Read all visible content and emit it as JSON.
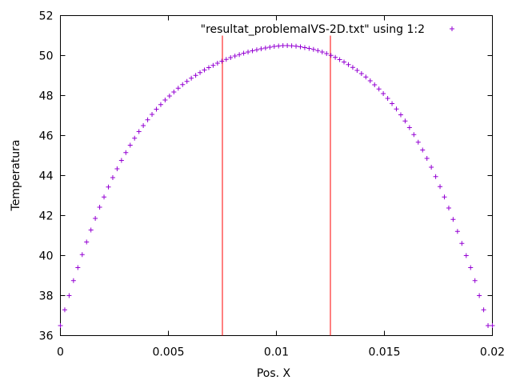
{
  "chart_data": {
    "type": "scatter",
    "title": "",
    "xlabel": "Pos. X",
    "ylabel": "Temperatura",
    "xlim": [
      0,
      0.02
    ],
    "ylim": [
      36,
      52
    ],
    "xticks": [
      "0",
      "0.005",
      "0.01",
      "0.015",
      "0.02"
    ],
    "yticks": [
      "36",
      "38",
      "40",
      "42",
      "44",
      "46",
      "48",
      "50",
      "52"
    ],
    "legend_position": "top-right",
    "grid": false,
    "series": [
      {
        "name": "\"resultat_problemaIVS-2D.txt\" using 1:2",
        "color": "#9400d3",
        "marker": "plus",
        "x": [
          0,
          0.000202,
          0.000404,
          0.000606,
          0.000808,
          0.00101,
          0.001212,
          0.001414,
          0.001616,
          0.001818,
          0.00202,
          0.002222,
          0.002424,
          0.002626,
          0.002828,
          0.00303,
          0.003232,
          0.003434,
          0.003636,
          0.003838,
          0.00404,
          0.004242,
          0.004444,
          0.004646,
          0.004848,
          0.005051,
          0.005253,
          0.005455,
          0.005657,
          0.005859,
          0.006061,
          0.006263,
          0.006465,
          0.006667,
          0.006869,
          0.007071,
          0.007273,
          0.007475,
          0.007677,
          0.007879,
          0.008081,
          0.008283,
          0.008485,
          0.008687,
          0.008889,
          0.009091,
          0.009293,
          0.009495,
          0.009697,
          0.009899,
          0.010101,
          0.010303,
          0.010505,
          0.010707,
          0.010909,
          0.011111,
          0.011313,
          0.011515,
          0.011717,
          0.011919,
          0.012121,
          0.012323,
          0.012525,
          0.012727,
          0.012929,
          0.013131,
          0.013333,
          0.013535,
          0.013737,
          0.013939,
          0.014141,
          0.014343,
          0.014545,
          0.014747,
          0.014949,
          0.015152,
          0.015354,
          0.015556,
          0.015758,
          0.01596,
          0.016162,
          0.016364,
          0.016566,
          0.016768,
          0.01697,
          0.017172,
          0.017374,
          0.017576,
          0.017778,
          0.01798,
          0.018182,
          0.018384,
          0.018586,
          0.018788,
          0.01899,
          0.019192,
          0.019394,
          0.019596,
          0.019798,
          0.02
        ],
        "y": [
          36.5,
          37.29,
          38.0,
          38.75,
          39.4,
          40.05,
          40.68,
          41.28,
          41.86,
          42.42,
          42.93,
          43.43,
          43.9,
          44.34,
          44.76,
          45.15,
          45.52,
          45.87,
          46.2,
          46.5,
          46.79,
          47.06,
          47.32,
          47.55,
          47.78,
          47.98,
          48.18,
          48.37,
          48.55,
          48.71,
          48.87,
          49.01,
          49.15,
          49.28,
          49.4,
          49.51,
          49.62,
          49.72,
          49.81,
          49.9,
          49.98,
          50.05,
          50.12,
          50.18,
          50.24,
          50.29,
          50.34,
          50.38,
          50.42,
          50.46,
          50.48,
          50.5,
          50.5,
          50.49,
          50.47,
          50.44,
          50.4,
          50.36,
          50.31,
          50.25,
          50.18,
          50.1,
          50.01,
          49.91,
          49.8,
          49.68,
          49.55,
          49.41,
          49.26,
          49.1,
          48.93,
          48.74,
          48.54,
          48.33,
          48.1,
          47.86,
          47.6,
          47.33,
          47.04,
          46.73,
          46.4,
          46.05,
          45.67,
          45.28,
          44.86,
          44.42,
          43.95,
          43.45,
          42.93,
          42.38,
          41.81,
          41.21,
          40.61,
          40.0,
          39.4,
          38.75,
          38.0,
          37.29,
          36.5,
          36.5
        ]
      }
    ],
    "vertical_lines": [
      {
        "x": 0.0075,
        "y_from": 36,
        "y_to": 51,
        "color": "#ff0000"
      },
      {
        "x": 0.0125,
        "y_from": 36,
        "y_to": 51,
        "color": "#ff0000"
      }
    ]
  }
}
